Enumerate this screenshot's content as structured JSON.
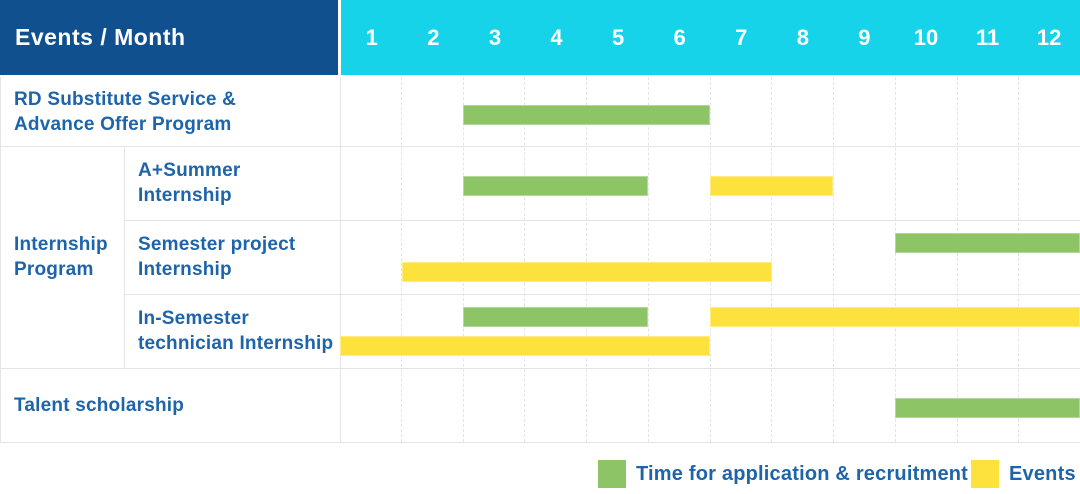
{
  "colors": {
    "header_navy": "#11508e",
    "header_cyan": "#16d3e9",
    "application_green": "#8cc466",
    "event_yellow": "#fde23d",
    "label_blue": "#1e64aa"
  },
  "chart_data": {
    "type": "gantt",
    "corner_title": "Events / Month",
    "x_label": "Month",
    "x_ticks": [
      "1",
      "2",
      "3",
      "4",
      "5",
      "6",
      "7",
      "8",
      "9",
      "10",
      "11",
      "12"
    ],
    "x_range": [
      1,
      12
    ],
    "grid": "dashed-vertical-month-lines",
    "group": {
      "label": "Internship Program",
      "label_lines": [
        "Internship",
        "Program"
      ],
      "spans_rows": [
        "A+Summer Internship",
        "Semester project Internship",
        "In-Semester technician Internship"
      ]
    },
    "rows": [
      {
        "id": "rd-substitute",
        "label": "RD Substitute Service & Advance Offer Program",
        "label_lines": [
          "RD Substitute Service &",
          "Advance Offer Program"
        ],
        "in_group": false,
        "tracks": 1,
        "bars": [
          {
            "kind": "application",
            "start_month": 3,
            "end_month": 6,
            "track": 0
          }
        ]
      },
      {
        "id": "a-plus-summer",
        "label": "A+Summer Internship",
        "label_lines": [
          "A+Summer",
          "Internship"
        ],
        "in_group": true,
        "tracks": 1,
        "bars": [
          {
            "kind": "application",
            "start_month": 3,
            "end_month": 5,
            "track": 0
          },
          {
            "kind": "event",
            "start_month": 7,
            "end_month": 8,
            "track": 0
          }
        ]
      },
      {
        "id": "semester-project",
        "label": "Semester project Internship",
        "label_lines": [
          "Semester project",
          "Internship"
        ],
        "in_group": true,
        "tracks": 2,
        "bars": [
          {
            "kind": "application",
            "start_month": 10,
            "end_month": 12,
            "track": 0
          },
          {
            "kind": "event",
            "start_month": 2,
            "end_month": 7,
            "track": 1
          }
        ]
      },
      {
        "id": "in-semester-technician",
        "label": "In-Semester technician Internship",
        "label_lines": [
          "In-Semester",
          "technician Internship"
        ],
        "in_group": true,
        "tracks": 2,
        "bars": [
          {
            "kind": "application",
            "start_month": 3,
            "end_month": 5,
            "track": 0
          },
          {
            "kind": "event",
            "start_month": 7,
            "end_month": 12,
            "track": 0
          },
          {
            "kind": "event",
            "start_month": 1,
            "end_month": 6,
            "track": 1
          }
        ]
      },
      {
        "id": "talent-scholarship",
        "label": "Talent scholarship",
        "label_lines": [
          "Talent scholarship"
        ],
        "in_group": false,
        "tracks": 1,
        "bars": [
          {
            "kind": "application",
            "start_month": 10,
            "end_month": 12,
            "track": 0
          }
        ]
      }
    ],
    "legend": [
      {
        "kind": "application",
        "label": "Time for application & recruitment",
        "color": "#8cc466"
      },
      {
        "kind": "event",
        "label": "Events",
        "color": "#fde23d"
      }
    ]
  }
}
